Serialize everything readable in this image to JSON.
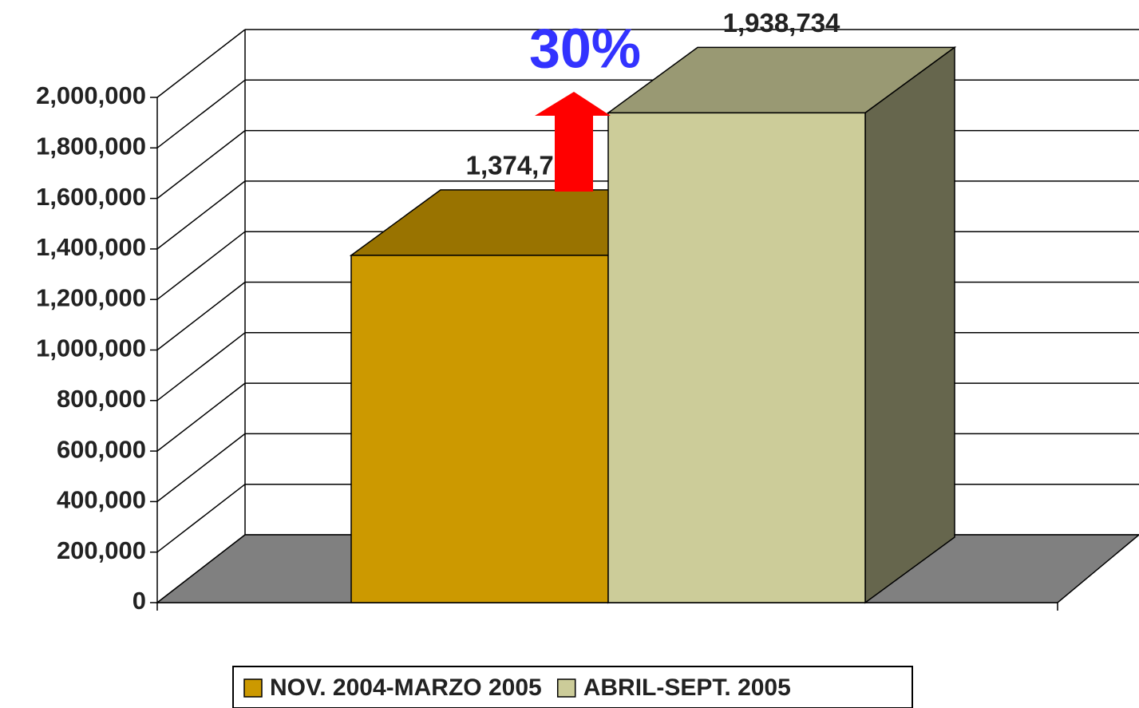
{
  "chart_data": {
    "type": "bar3d",
    "categories": [
      null
    ],
    "series": [
      {
        "name": "NOV. 2004-MARZO 2005",
        "color": "#cc9900",
        "values": [
          1374768
        ],
        "value_labels": [
          "1,374,768"
        ]
      },
      {
        "name": "ABRIL-SEPT. 2005",
        "color": "#cccc99",
        "values": [
          1938734
        ],
        "value_labels": [
          "1,938,734"
        ]
      }
    ],
    "annotations": [
      {
        "text": "30%",
        "color": "#3333ff"
      }
    ],
    "ylim": [
      0,
      2000000
    ],
    "yticks": [
      0,
      {
        "value": 200000,
        "label": "200,000"
      },
      {
        "value": 400000,
        "label": "400,000"
      },
      {
        "value": 600000,
        "label": "600,000"
      },
      {
        "value": 800000,
        "label": "800,000"
      },
      {
        "value": 1000000,
        "label": "1,000,000"
      },
      {
        "value": 1200000,
        "label": "1,200,000"
      },
      {
        "value": 1400000,
        "label": "1,400,000"
      },
      {
        "value": 1600000,
        "label": "1,600,000"
      },
      {
        "value": 1800000,
        "label": "1,800,000"
      },
      {
        "value": 2000000,
        "label": "2,000,000"
      }
    ],
    "grid": true,
    "legend": "bottom"
  }
}
